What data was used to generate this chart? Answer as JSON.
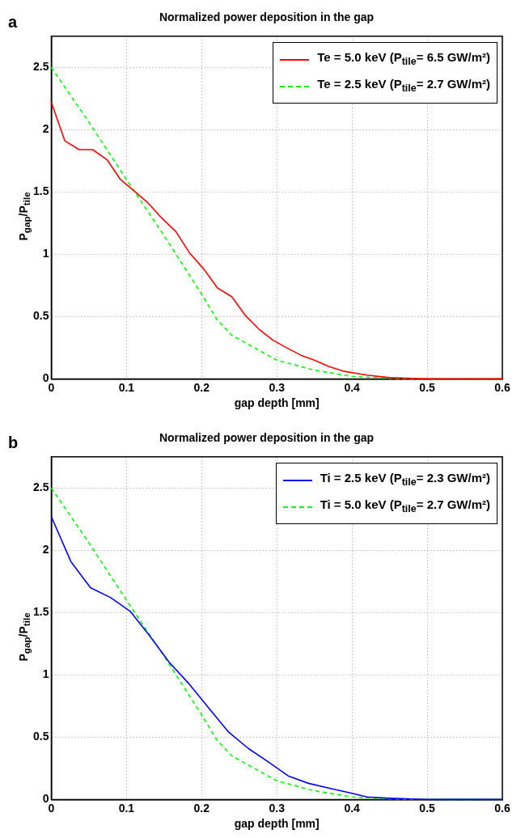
{
  "chart_data": [
    {
      "type": "line",
      "title": "Normalized power deposition in the gap",
      "xlabel": "gap depth [mm]",
      "ylabel": "P$_{gap}$/P$_{tile}$",
      "annotations": [
        "a"
      ],
      "xlim": [
        0,
        0.6
      ],
      "xticks": [
        0,
        0.1,
        0.2,
        0.3,
        0.4,
        0.5,
        0.6
      ],
      "ylim": [
        0,
        2.75
      ],
      "yticks": [
        0,
        0.5,
        1,
        1.5,
        2,
        2.5
      ],
      "grid": true,
      "legend": "top right",
      "marker": "none",
      "series": [
        {
          "name": "Te = 5.0 keV (P$_{tile}$= 6.5 GW/m²)",
          "color": "#ff0000",
          "line_style": "solid",
          "x": [
            0,
            0.018,
            0.037,
            0.055,
            0.074,
            0.092,
            0.11,
            0.129,
            0.147,
            0.166,
            0.184,
            0.203,
            0.221,
            0.24,
            0.258,
            0.276,
            0.295,
            0.313,
            0.332,
            0.35,
            0.369,
            0.39,
            0.42,
            0.45,
            0.5,
            0.6
          ],
          "values": [
            2.22,
            1.91,
            1.84,
            1.84,
            1.76,
            1.6,
            1.51,
            1.41,
            1.29,
            1.18,
            1.01,
            0.88,
            0.73,
            0.66,
            0.51,
            0.4,
            0.31,
            0.25,
            0.19,
            0.15,
            0.1,
            0.06,
            0.03,
            0.01,
            0,
            0
          ]
        },
        {
          "name": "Te = 2.5 keV (P$_{tile}$= 2.7 GW/m²)",
          "color": "#00ff00",
          "line_style": "dashed",
          "x": [
            0,
            0.05,
            0.1,
            0.15,
            0.2,
            0.22,
            0.24,
            0.27,
            0.3,
            0.35,
            0.4,
            0.45,
            0.5,
            0.6
          ],
          "values": [
            2.5,
            2.06,
            1.6,
            1.15,
            0.68,
            0.48,
            0.35,
            0.25,
            0.15,
            0.07,
            0.02,
            0.005,
            0,
            0
          ]
        }
      ]
    },
    {
      "type": "line",
      "title": "Normalized power deposition in the gap",
      "xlabel": "gap depth [mm]",
      "ylabel": "P$_{gap}$/P$_{tile}$",
      "annotations": [
        "b"
      ],
      "xlim": [
        0,
        0.6
      ],
      "xticks": [
        0,
        0.1,
        0.2,
        0.3,
        0.4,
        0.5,
        0.6
      ],
      "ylim": [
        0,
        2.75
      ],
      "yticks": [
        0,
        0.5,
        1,
        1.5,
        2,
        2.5
      ],
      "grid": true,
      "legend": "top right",
      "marker": "none",
      "series": [
        {
          "name": "Ti = 2.5 keV (P$_{tile}$= 2.3 GW/m²)",
          "color": "#0000ff",
          "line_style": "solid",
          "x": [
            0,
            0.026,
            0.052,
            0.079,
            0.105,
            0.13,
            0.157,
            0.183,
            0.21,
            0.236,
            0.262,
            0.289,
            0.315,
            0.342,
            0.37,
            0.4,
            0.42,
            0.45,
            0.5,
            0.6
          ],
          "values": [
            2.27,
            1.91,
            1.7,
            1.62,
            1.51,
            1.32,
            1.1,
            0.93,
            0.73,
            0.54,
            0.41,
            0.3,
            0.19,
            0.13,
            0.09,
            0.05,
            0.02,
            0.01,
            0,
            0
          ]
        },
        {
          "name": "Ti = 5.0 keV (P$_{tile}$= 2.7 GW/m²)",
          "color": "#00ff00",
          "line_style": "dashed",
          "x": [
            0,
            0.05,
            0.1,
            0.15,
            0.2,
            0.22,
            0.24,
            0.27,
            0.3,
            0.35,
            0.4,
            0.45,
            0.5,
            0.6
          ],
          "values": [
            2.5,
            2.06,
            1.6,
            1.15,
            0.68,
            0.48,
            0.35,
            0.25,
            0.15,
            0.07,
            0.02,
            0.005,
            0,
            0
          ]
        }
      ]
    }
  ]
}
